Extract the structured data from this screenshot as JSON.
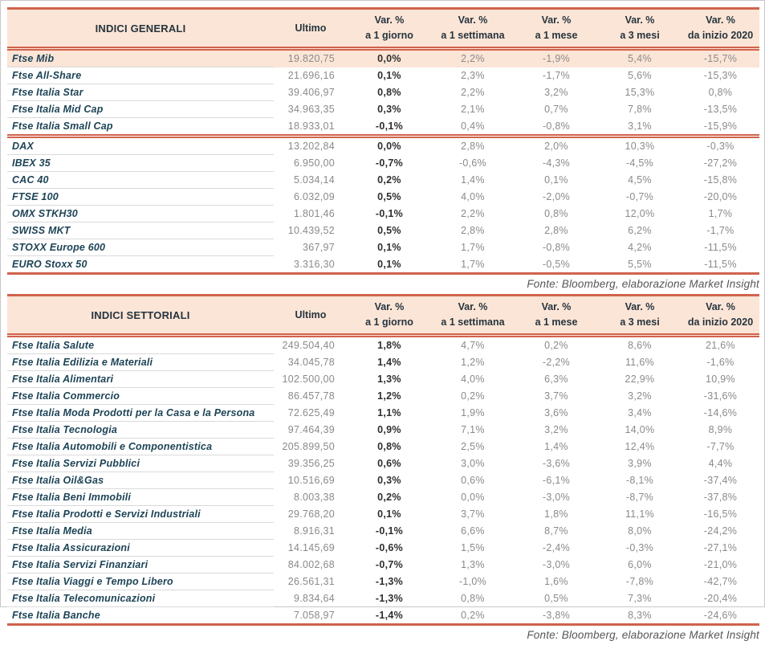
{
  "columns": {
    "ultimo": "Ultimo",
    "var_label": "Var. %",
    "periods": [
      "a 1 giorno",
      "a 1 settimana",
      "a 1 mese",
      "a 3 mesi",
      "da inizio 2020"
    ]
  },
  "colors": {
    "accent_coral": "#d0634d",
    "header_bg": "#fbe5d6",
    "highlight_row_bg": "#fbe5d6",
    "index_text": "#1d4456",
    "value_text": "#8a8a8a",
    "day_value_text": "#2e2e2e"
  },
  "tables": [
    {
      "title": "INDICI GENERALI",
      "footer": "Fonte: Bloomberg, elaborazione Market Insight",
      "groups": [
        {
          "rows": [
            {
              "name": "Ftse Mib",
              "ultimo": "19.820,75",
              "values": [
                "0,0%",
                "2,2%",
                "-1,9%",
                "5,4%",
                "-15,7%"
              ],
              "highlight": true
            },
            {
              "name": "Ftse All-Share",
              "ultimo": "21.696,16",
              "values": [
                "0,1%",
                "2,3%",
                "-1,7%",
                "5,6%",
                "-15,3%"
              ]
            },
            {
              "name": "Ftse Italia Star",
              "ultimo": "39.406,97",
              "values": [
                "0,8%",
                "2,2%",
                "3,2%",
                "15,3%",
                "0,8%"
              ]
            },
            {
              "name": "Ftse Italia Mid Cap",
              "ultimo": "34.963,35",
              "values": [
                "0,3%",
                "2,1%",
                "0,7%",
                "7,8%",
                "-13,5%"
              ]
            },
            {
              "name": "Ftse Italia Small Cap",
              "ultimo": "18.933,01",
              "values": [
                "-0,1%",
                "0,4%",
                "-0,8%",
                "3,1%",
                "-15,9%"
              ]
            }
          ]
        },
        {
          "rows": [
            {
              "name": "DAX",
              "ultimo": "13.202,84",
              "values": [
                "0,0%",
                "2,8%",
                "2,0%",
                "10,3%",
                "-0,3%"
              ]
            },
            {
              "name": "IBEX 35",
              "ultimo": "6.950,00",
              "values": [
                "-0,7%",
                "-0,6%",
                "-4,3%",
                "-4,5%",
                "-27,2%"
              ]
            },
            {
              "name": "CAC 40",
              "ultimo": "5.034,14",
              "values": [
                "0,2%",
                "1,4%",
                "0,1%",
                "4,5%",
                "-15,8%"
              ]
            },
            {
              "name": "FTSE 100",
              "ultimo": "6.032,09",
              "values": [
                "0,5%",
                "4,0%",
                "-2,0%",
                "-0,7%",
                "-20,0%"
              ]
            },
            {
              "name": "OMX STKH30",
              "ultimo": "1.801,46",
              "values": [
                "-0,1%",
                "2,2%",
                "0,8%",
                "12,0%",
                "1,7%"
              ]
            },
            {
              "name": "SWISS MKT",
              "ultimo": "10.439,52",
              "values": [
                "0,5%",
                "2,8%",
                "2,8%",
                "6,2%",
                "-1,7%"
              ]
            },
            {
              "name": "STOXX Europe 600",
              "ultimo": "367,97",
              "values": [
                "0,1%",
                "1,7%",
                "-0,8%",
                "4,2%",
                "-11,5%"
              ]
            },
            {
              "name": "EURO Stoxx 50",
              "ultimo": "3.316,30",
              "values": [
                "0,1%",
                "1,7%",
                "-0,5%",
                "5,5%",
                "-11,5%"
              ]
            }
          ]
        }
      ]
    },
    {
      "title": "INDICI SETTORIALI",
      "footer": "Fonte: Bloomberg, elaborazione Market Insight",
      "groups": [
        {
          "rows": [
            {
              "name": "Ftse Italia Salute",
              "ultimo": "249.504,40",
              "values": [
                "1,8%",
                "4,7%",
                "0,2%",
                "8,6%",
                "21,6%"
              ]
            },
            {
              "name": "Ftse Italia Edilizia e Materiali",
              "ultimo": "34.045,78",
              "values": [
                "1,4%",
                "1,2%",
                "-2,2%",
                "11,6%",
                "-1,6%"
              ]
            },
            {
              "name": "Ftse Italia Alimentari",
              "ultimo": "102.500,00",
              "values": [
                "1,3%",
                "4,0%",
                "6,3%",
                "22,9%",
                "10,9%"
              ]
            },
            {
              "name": "Ftse Italia Commercio",
              "ultimo": "86.457,78",
              "values": [
                "1,2%",
                "0,2%",
                "3,7%",
                "3,2%",
                "-31,6%"
              ]
            },
            {
              "name": "Ftse Italia Moda Prodotti per la Casa e la Persona",
              "ultimo": "72.625,49",
              "values": [
                "1,1%",
                "1,9%",
                "3,6%",
                "3,4%",
                "-14,6%"
              ]
            },
            {
              "name": "Ftse Italia Tecnologia",
              "ultimo": "97.464,39",
              "values": [
                "0,9%",
                "7,1%",
                "3,2%",
                "14,0%",
                "8,9%"
              ]
            },
            {
              "name": "Ftse Italia Automobili e Componentistica",
              "ultimo": "205.899,50",
              "values": [
                "0,8%",
                "2,5%",
                "1,4%",
                "12,4%",
                "-7,7%"
              ]
            },
            {
              "name": "Ftse Italia Servizi Pubblici",
              "ultimo": "39.356,25",
              "values": [
                "0,6%",
                "3,0%",
                "-3,6%",
                "3,9%",
                "4,4%"
              ]
            },
            {
              "name": "Ftse Italia Oil&Gas",
              "ultimo": "10.516,69",
              "values": [
                "0,3%",
                "0,6%",
                "-6,1%",
                "-8,1%",
                "-37,4%"
              ]
            },
            {
              "name": "Ftse Italia Beni Immobili",
              "ultimo": "8.003,38",
              "values": [
                "0,2%",
                "0,0%",
                "-3,0%",
                "-8,7%",
                "-37,8%"
              ]
            },
            {
              "name": "Ftse Italia Prodotti e Servizi Industriali",
              "ultimo": "29.768,20",
              "values": [
                "0,1%",
                "3,7%",
                "1,8%",
                "11,1%",
                "-16,5%"
              ]
            },
            {
              "name": "Ftse Italia Media",
              "ultimo": "8.916,31",
              "values": [
                "-0,1%",
                "6,6%",
                "8,7%",
                "8,0%",
                "-24,2%"
              ]
            },
            {
              "name": "Ftse Italia Assicurazioni",
              "ultimo": "14.145,69",
              "values": [
                "-0,6%",
                "1,5%",
                "-2,4%",
                "-0,3%",
                "-27,1%"
              ]
            },
            {
              "name": "Ftse Italia Servizi Finanziari",
              "ultimo": "84.002,68",
              "values": [
                "-0,7%",
                "1,3%",
                "-3,0%",
                "6,0%",
                "-21,0%"
              ]
            },
            {
              "name": "Ftse Italia Viaggi e Tempo Libero",
              "ultimo": "26.561,31",
              "values": [
                "-1,3%",
                "-1,0%",
                "1,6%",
                "-7,8%",
                "-42,7%"
              ]
            },
            {
              "name": "Ftse Italia Telecomunicazioni",
              "ultimo": "9.834,64",
              "values": [
                "-1,3%",
                "0,8%",
                "0,5%",
                "7,3%",
                "-20,4%"
              ]
            },
            {
              "name": "Ftse Italia Banche",
              "ultimo": "7.058,97",
              "values": [
                "-1,4%",
                "0,2%",
                "-3,8%",
                "8,3%",
                "-24,6%"
              ]
            }
          ]
        }
      ]
    }
  ]
}
